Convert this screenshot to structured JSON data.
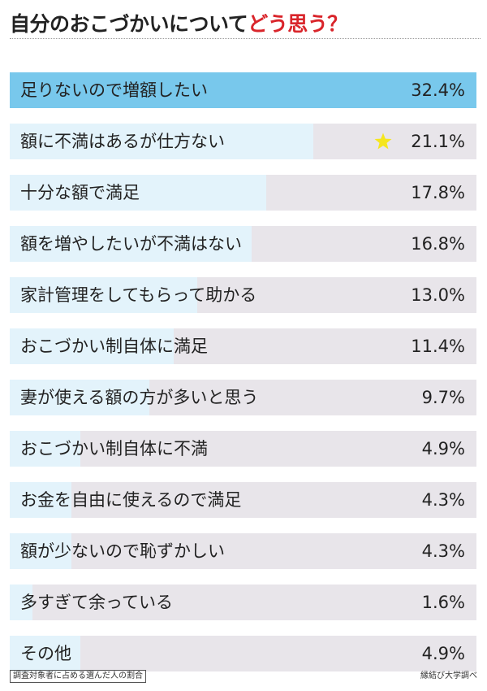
{
  "title": {
    "main": "自分のおこづかいについて",
    "accent": "どう思う？"
  },
  "colors": {
    "highlight_bar": "#78c8ec",
    "bar": "#e3f3fb",
    "track": "#e8e5ea",
    "title_accent": "#d9252b",
    "star": "#f5e61e"
  },
  "chart_data": {
    "type": "bar",
    "orientation": "horizontal",
    "categories": [
      "足りないので増額したい",
      "額に不満はあるが仕方ない",
      "十分な額で満足",
      "額を増やしたいが不満はない",
      "家計管理をしてもらって助かる",
      "おこづかい制自体に満足",
      "妻が使える額の方が多いと思う",
      "おこづかい制自体に不満",
      "お金を自由に使えるので満足",
      "額が少ないので恥ずかしい",
      "多すぎて余っている",
      "その他"
    ],
    "values": [
      32.4,
      21.1,
      17.8,
      16.8,
      13.0,
      11.4,
      9.7,
      4.9,
      4.3,
      4.3,
      1.6,
      4.9
    ],
    "value_labels": [
      "32.4%",
      "21.1%",
      "17.8%",
      "16.8%",
      "13.0%",
      "11.4%",
      "9.7%",
      "4.9%",
      "4.3%",
      "4.3%",
      "1.6%",
      "4.9%"
    ],
    "unit": "%",
    "xlim": [
      0,
      32.4
    ],
    "highlighted_index": 0,
    "starred_index": 1
  },
  "footer": {
    "note": "調査対象者に占める選んだ人の割合",
    "source": "縁結び大学調べ"
  }
}
